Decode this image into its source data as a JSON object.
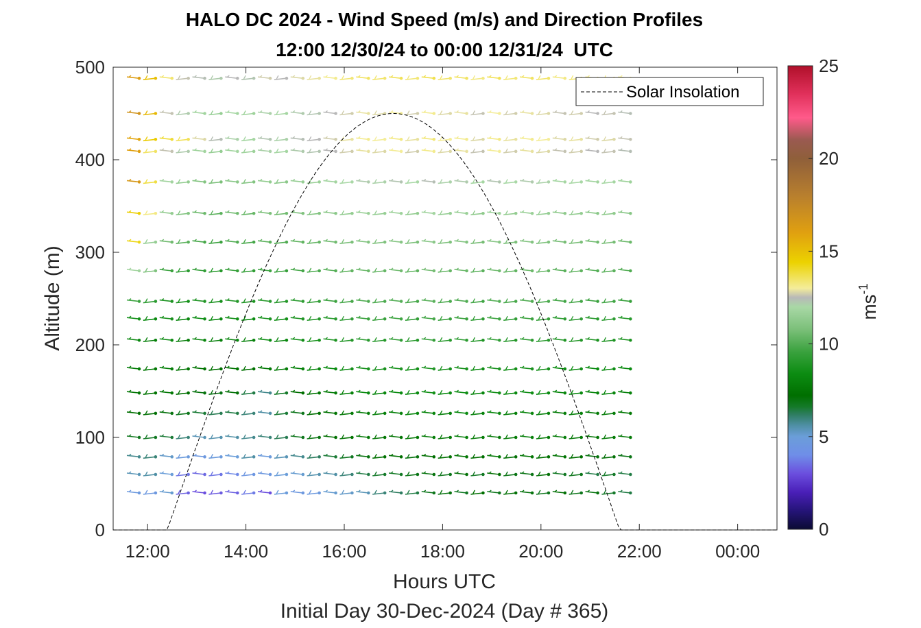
{
  "chart_data": {
    "type": "scatter",
    "subtype": "wind-barb-profile",
    "title": "HALO DC 2024 - Wind Speed (m/s) and Direction Profiles",
    "subtitle": "12:00 12/30/24 to 00:00 12/31/24  UTC",
    "xlabel": "Hours UTC",
    "ylabel": "Altitude (m)",
    "footer": "Initial Day 30-Dec-2024 (Day # 365)",
    "colorbar_label": "ms",
    "colorbar_label_exp": "-1",
    "colorbar_range": [
      0,
      25
    ],
    "colorbar_ticks": [
      "0",
      "5",
      "10",
      "15",
      "20",
      "25"
    ],
    "xlim": [
      11.3,
      24.8
    ],
    "ylim": [
      0,
      500
    ],
    "x_ticks": [
      12,
      14,
      16,
      18,
      20,
      22,
      24
    ],
    "x_tick_labels": [
      "12:00",
      "14:00",
      "16:00",
      "18:00",
      "20:00",
      "22:00",
      "00:00"
    ],
    "y_ticks": [
      0,
      100,
      200,
      300,
      400,
      500
    ],
    "y_tick_labels": [
      "0",
      "100",
      "200",
      "300",
      "400",
      "500"
    ],
    "legend": {
      "label": "Solar Insolation",
      "position": "top-right"
    },
    "solar_insolation": {
      "start_hour": 12.4,
      "end_hour": 21.6,
      "peak_altitude": 450,
      "baseline": 0
    },
    "time_step_hours": 0.333,
    "profile_times_start": 11.83,
    "profile_times_end": 21.83,
    "altitudes": [
      40,
      60,
      79,
      100,
      126,
      148,
      174,
      205,
      228,
      247,
      280,
      311,
      342,
      376,
      409,
      422,
      450,
      488
    ],
    "wind_speed_ms": [
      [
        4.7,
        4.6,
        5.1,
        3.3,
        3.0,
        3.2,
        3.3,
        3.7,
        3.0,
        4.9,
        4.6,
        4.7,
        5.1,
        5.2,
        5.4,
        6.0,
        6.2,
        6.4,
        6.8,
        7.0,
        6.7,
        7.2,
        6.8,
        7.1,
        7.0,
        6.8,
        7.1,
        6.8,
        7.0,
        6.6,
        6.4,
        6.6
      ],
      [
        5.4,
        5.6,
        5.0,
        3.6,
        3.4,
        3.6,
        3.9,
        4.5,
        4.6,
        5.0,
        5.1,
        5.5,
        5.6,
        6.0,
        6.4,
        6.6,
        6.7,
        6.9,
        7.0,
        6.8,
        7.1,
        6.7,
        7.2,
        6.9,
        6.9,
        7.1,
        6.7,
        6.8,
        6.4,
        6.6,
        6.4,
        6.2
      ],
      [
        5.8,
        6.0,
        5.2,
        4.8,
        4.6,
        4.8,
        5.0,
        5.6,
        4.8,
        5.4,
        5.8,
        6.2,
        6.5,
        6.7,
        7.0,
        7.3,
        7.2,
        7.0,
        7.2,
        7.3,
        7.5,
        7.2,
        7.6,
        7.1,
        7.5,
        7.3,
        7.4,
        7.2,
        7.0,
        7.1,
        6.9,
        7.1
      ],
      [
        6.8,
        6.7,
        6.5,
        6.0,
        5.4,
        5.5,
        5.6,
        5.8,
        6.0,
        6.3,
        6.8,
        7.0,
        7.2,
        7.4,
        7.6,
        7.5,
        7.4,
        7.6,
        7.8,
        7.6,
        7.9,
        7.8,
        7.6,
        7.7,
        7.9,
        7.7,
        7.8,
        7.6,
        7.5,
        7.7,
        7.6,
        7.4
      ],
      [
        7.2,
        7.1,
        7.0,
        6.8,
        6.5,
        6.3,
        6.4,
        6.0,
        5.6,
        6.5,
        6.8,
        7.2,
        7.4,
        7.6,
        7.8,
        7.9,
        8.0,
        8.2,
        8.1,
        7.9,
        8.3,
        8.0,
        8.2,
        7.9,
        8.1,
        8.0,
        7.8,
        7.9,
        7.7,
        7.8,
        7.6,
        7.7
      ],
      [
        7.5,
        7.4,
        7.6,
        7.2,
        7.0,
        6.9,
        7.1,
        6.4,
        5.8,
        6.6,
        7.2,
        7.5,
        7.8,
        8.0,
        8.3,
        8.2,
        8.4,
        8.3,
        8.6,
        8.4,
        8.5,
        8.2,
        8.6,
        8.3,
        8.5,
        8.4,
        8.2,
        8.3,
        8.1,
        8.2,
        8.0,
        8.1
      ],
      [
        7.8,
        7.6,
        7.9,
        7.5,
        7.4,
        7.3,
        7.5,
        7.3,
        7.6,
        7.8,
        8.0,
        8.2,
        8.4,
        8.6,
        8.8,
        8.7,
        8.9,
        8.6,
        9.0,
        8.7,
        8.8,
        8.5,
        8.9,
        8.6,
        8.8,
        8.7,
        8.5,
        8.6,
        8.4,
        8.5,
        8.3,
        8.4
      ],
      [
        8.2,
        7.9,
        8.3,
        7.8,
        8.1,
        7.9,
        8.2,
        8.0,
        8.4,
        8.2,
        8.5,
        8.6,
        8.8,
        9.0,
        9.2,
        9.1,
        9.3,
        9.0,
        9.4,
        9.1,
        9.2,
        8.9,
        9.3,
        9.0,
        9.2,
        9.1,
        8.9,
        9.0,
        8.8,
        8.9,
        8.7,
        8.8
      ],
      [
        8.6,
        8.3,
        8.7,
        8.2,
        8.5,
        8.3,
        8.6,
        8.4,
        8.8,
        8.6,
        8.9,
        9.0,
        9.2,
        9.4,
        9.6,
        9.5,
        9.7,
        9.4,
        9.8,
        9.5,
        9.6,
        9.3,
        9.7,
        9.4,
        9.6,
        9.5,
        9.3,
        9.4,
        9.2,
        9.3,
        9.1,
        9.2
      ],
      [
        9.6,
        9.2,
        8.8,
        8.6,
        8.9,
        8.7,
        9.0,
        8.8,
        9.2,
        9.0,
        9.3,
        9.4,
        9.6,
        9.8,
        10.0,
        9.9,
        10.1,
        9.8,
        10.2,
        9.9,
        10.0,
        9.7,
        10.1,
        9.8,
        10.0,
        9.9,
        9.7,
        9.8,
        9.6,
        9.7,
        9.5,
        9.6
      ],
      [
        11.8,
        10.9,
        9.6,
        9.2,
        9.4,
        9.1,
        9.5,
        9.3,
        9.7,
        9.5,
        9.8,
        9.9,
        10.1,
        10.3,
        10.5,
        10.4,
        10.6,
        10.3,
        10.7,
        10.4,
        10.5,
        10.2,
        10.6,
        10.3,
        10.5,
        10.4,
        10.2,
        10.3,
        10.1,
        10.2,
        10.0,
        10.1
      ],
      [
        14.2,
        11.5,
        10.6,
        10.2,
        9.8,
        9.6,
        10.0,
        9.8,
        10.2,
        10.0,
        10.3,
        10.4,
        10.6,
        10.8,
        11.0,
        10.9,
        11.1,
        10.8,
        11.2,
        10.9,
        11.0,
        10.7,
        11.1,
        10.8,
        11.0,
        10.9,
        10.7,
        10.8,
        10.6,
        10.7,
        10.5,
        10.6
      ],
      [
        14.5,
        13.2,
        11.4,
        11.0,
        10.5,
        10.2,
        10.6,
        10.4,
        10.8,
        10.6,
        10.9,
        11.0,
        11.2,
        11.4,
        11.6,
        11.5,
        11.7,
        11.4,
        11.8,
        11.5,
        11.6,
        11.3,
        11.7,
        11.4,
        11.6,
        11.5,
        11.3,
        11.4,
        11.2,
        11.3,
        11.1,
        11.2
      ],
      [
        16.5,
        13.8,
        11.8,
        11.4,
        11.0,
        10.8,
        11.2,
        11.0,
        11.4,
        11.2,
        11.5,
        11.6,
        11.8,
        12.0,
        12.2,
        12.1,
        12.3,
        12.0,
        12.4,
        12.1,
        12.2,
        11.9,
        12.3,
        12.0,
        12.2,
        12.1,
        11.9,
        12.0,
        11.8,
        11.9,
        11.7,
        11.8
      ],
      [
        16.0,
        13.5,
        12.6,
        12.2,
        11.8,
        11.5,
        11.9,
        11.7,
        12.1,
        11.9,
        12.2,
        12.3,
        12.5,
        12.7,
        12.9,
        12.8,
        13.0,
        12.7,
        13.1,
        12.8,
        12.9,
        12.6,
        13.0,
        12.7,
        12.9,
        12.8,
        12.6,
        12.7,
        12.5,
        12.6,
        12.4,
        12.5
      ],
      [
        15.8,
        14.6,
        13.9,
        13.6,
        12.8,
        12.4,
        12.1,
        11.9,
        12.3,
        12.1,
        12.4,
        12.5,
        12.7,
        12.9,
        13.1,
        13.0,
        13.2,
        12.9,
        13.3,
        13.0,
        13.1,
        12.8,
        13.2,
        12.9,
        13.1,
        13.0,
        12.8,
        12.9,
        12.7,
        12.8,
        12.6,
        12.7
      ],
      [
        16.8,
        15.2,
        12.6,
        12.2,
        11.8,
        11.5,
        11.9,
        11.7,
        12.1,
        11.9,
        12.2,
        12.3,
        12.5,
        12.7,
        12.9,
        12.8,
        13.0,
        12.7,
        13.1,
        12.8,
        12.9,
        12.6,
        13.0,
        12.7,
        12.9,
        12.8,
        12.6,
        12.7,
        12.5,
        12.6,
        12.4,
        12.5
      ],
      [
        16.2,
        15.0,
        13.4,
        12.6,
        12.4,
        12.2,
        12.5,
        12.3,
        12.7,
        12.5,
        12.8,
        12.9,
        13.1,
        13.3,
        13.5,
        13.4,
        13.6,
        13.3,
        13.7,
        13.4,
        13.5,
        13.2,
        13.6,
        13.3,
        13.5,
        13.4,
        13.2,
        13.3,
        13.1,
        13.2,
        13.0,
        13.1
      ]
    ],
    "colormap": [
      [
        0,
        "#0b0b33"
      ],
      [
        1,
        "#251478"
      ],
      [
        2,
        "#4a1fb8"
      ],
      [
        3,
        "#6b4ede"
      ],
      [
        4,
        "#6f8ee8"
      ],
      [
        5,
        "#6b9ed9"
      ],
      [
        5.6,
        "#4f8fa5"
      ],
      [
        6.2,
        "#2e7d60"
      ],
      [
        6.6,
        "#157a2a"
      ],
      [
        7.2,
        "#006f00"
      ],
      [
        8.4,
        "#0c8c12"
      ],
      [
        9.6,
        "#3ba23f"
      ],
      [
        10.8,
        "#7cc07a"
      ],
      [
        12.0,
        "#a9d8a6"
      ],
      [
        12.5,
        "#b8b8b8"
      ],
      [
        13.0,
        "#f4ed9a"
      ],
      [
        14.4,
        "#ecd200"
      ],
      [
        16.0,
        "#e0a010"
      ],
      [
        18.0,
        "#b87f2e"
      ],
      [
        20.0,
        "#8f5f3a"
      ],
      [
        21.0,
        "#9a5a50"
      ],
      [
        22.2,
        "#ff5a8a"
      ],
      [
        23.5,
        "#e0305a"
      ],
      [
        25.0,
        "#b0102a"
      ]
    ]
  }
}
